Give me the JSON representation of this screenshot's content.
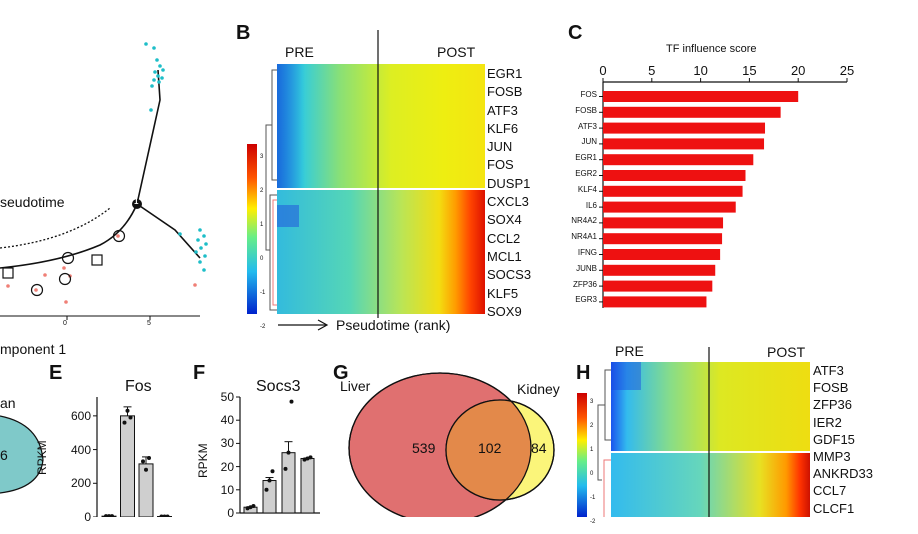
{
  "panel_A": {
    "label_pseudotime": "seudotime",
    "label_component": "mponent 1",
    "branch_node": "1",
    "x_ticks": [
      "0",
      "5"
    ],
    "partial_left_text": "an",
    "partial_venn_value": "6"
  },
  "panel_B": {
    "letter": "B",
    "pre": "PRE",
    "post": "POST",
    "genes": [
      "EGR1",
      "FOSB",
      "ATF3",
      "KLF6",
      "JUN",
      "FOS",
      "DUSP1",
      "CXCL3",
      "SOX4",
      "CCL2",
      "MCL1",
      "SOCS3",
      "KLF5",
      "SOX9"
    ],
    "x_axis_label": "Pseudotime (rank)",
    "colorbar_ticks": [
      "3",
      "2",
      "1",
      "0",
      "-1",
      "-2"
    ]
  },
  "panel_C": {
    "letter": "C",
    "title": "TF influence score",
    "x_ticks": [
      "0",
      "5",
      "10",
      "15",
      "20",
      "25"
    ],
    "chart_data": {
      "type": "bar",
      "orientation": "horizontal",
      "title": "TF influence score",
      "categories": [
        "FOS",
        "FOSB",
        "ATF3",
        "JUN",
        "EGR1",
        "EGR2",
        "KLF4",
        "IL6",
        "NR4A2",
        "NR4A1",
        "IFNG",
        "JUNB",
        "ZFP36",
        "EGR3"
      ],
      "values": [
        20.0,
        18.2,
        16.6,
        16.5,
        15.4,
        14.6,
        14.3,
        13.6,
        12.3,
        12.2,
        12.0,
        11.5,
        11.2,
        10.6
      ],
      "xlim": [
        0,
        25
      ],
      "bar_color": "#ee1111"
    }
  },
  "panel_E": {
    "letter": "E",
    "title": "Fos",
    "ylabel": "RPKM",
    "y_ticks": [
      "600",
      "400",
      "200",
      "0"
    ],
    "chart_data": {
      "type": "bar",
      "values": [
        5,
        600,
        315,
        3
      ],
      "ylim": [
        0,
        700
      ]
    }
  },
  "panel_F": {
    "letter": "F",
    "title": "Socs3",
    "ylabel": "RPKM",
    "y_ticks": [
      "50",
      "40",
      "30",
      "20",
      "10",
      "0"
    ],
    "chart_data": {
      "type": "bar",
      "values": [
        2.5,
        14,
        26,
        23.5
      ],
      "ylim": [
        0,
        50
      ]
    }
  },
  "panel_G": {
    "letter": "G",
    "left_label": "Liver",
    "right_label": "Kidney",
    "left_only": "539",
    "overlap": "102",
    "right_only": "84"
  },
  "panel_H": {
    "letter": "H",
    "pre": "PRE",
    "post": "POST",
    "genes": [
      "ATF3",
      "FOSB",
      "ZFP36",
      "IER2",
      "GDF15",
      "MMP3",
      "ANKRD33",
      "CCL7",
      "CLCF1"
    ],
    "colorbar_ticks": [
      "3",
      "2",
      "1",
      "0",
      "-1",
      "-2"
    ]
  },
  "colors": {
    "bar_red": "#ee1111",
    "venn_left": "#e07070",
    "venn_right": "#fbf57a",
    "venn_overlap": "#e3894a",
    "teal_dots": "#1ebec8",
    "salmon_dots": "#f07f76",
    "grey_bars": "#cfcfcf"
  }
}
